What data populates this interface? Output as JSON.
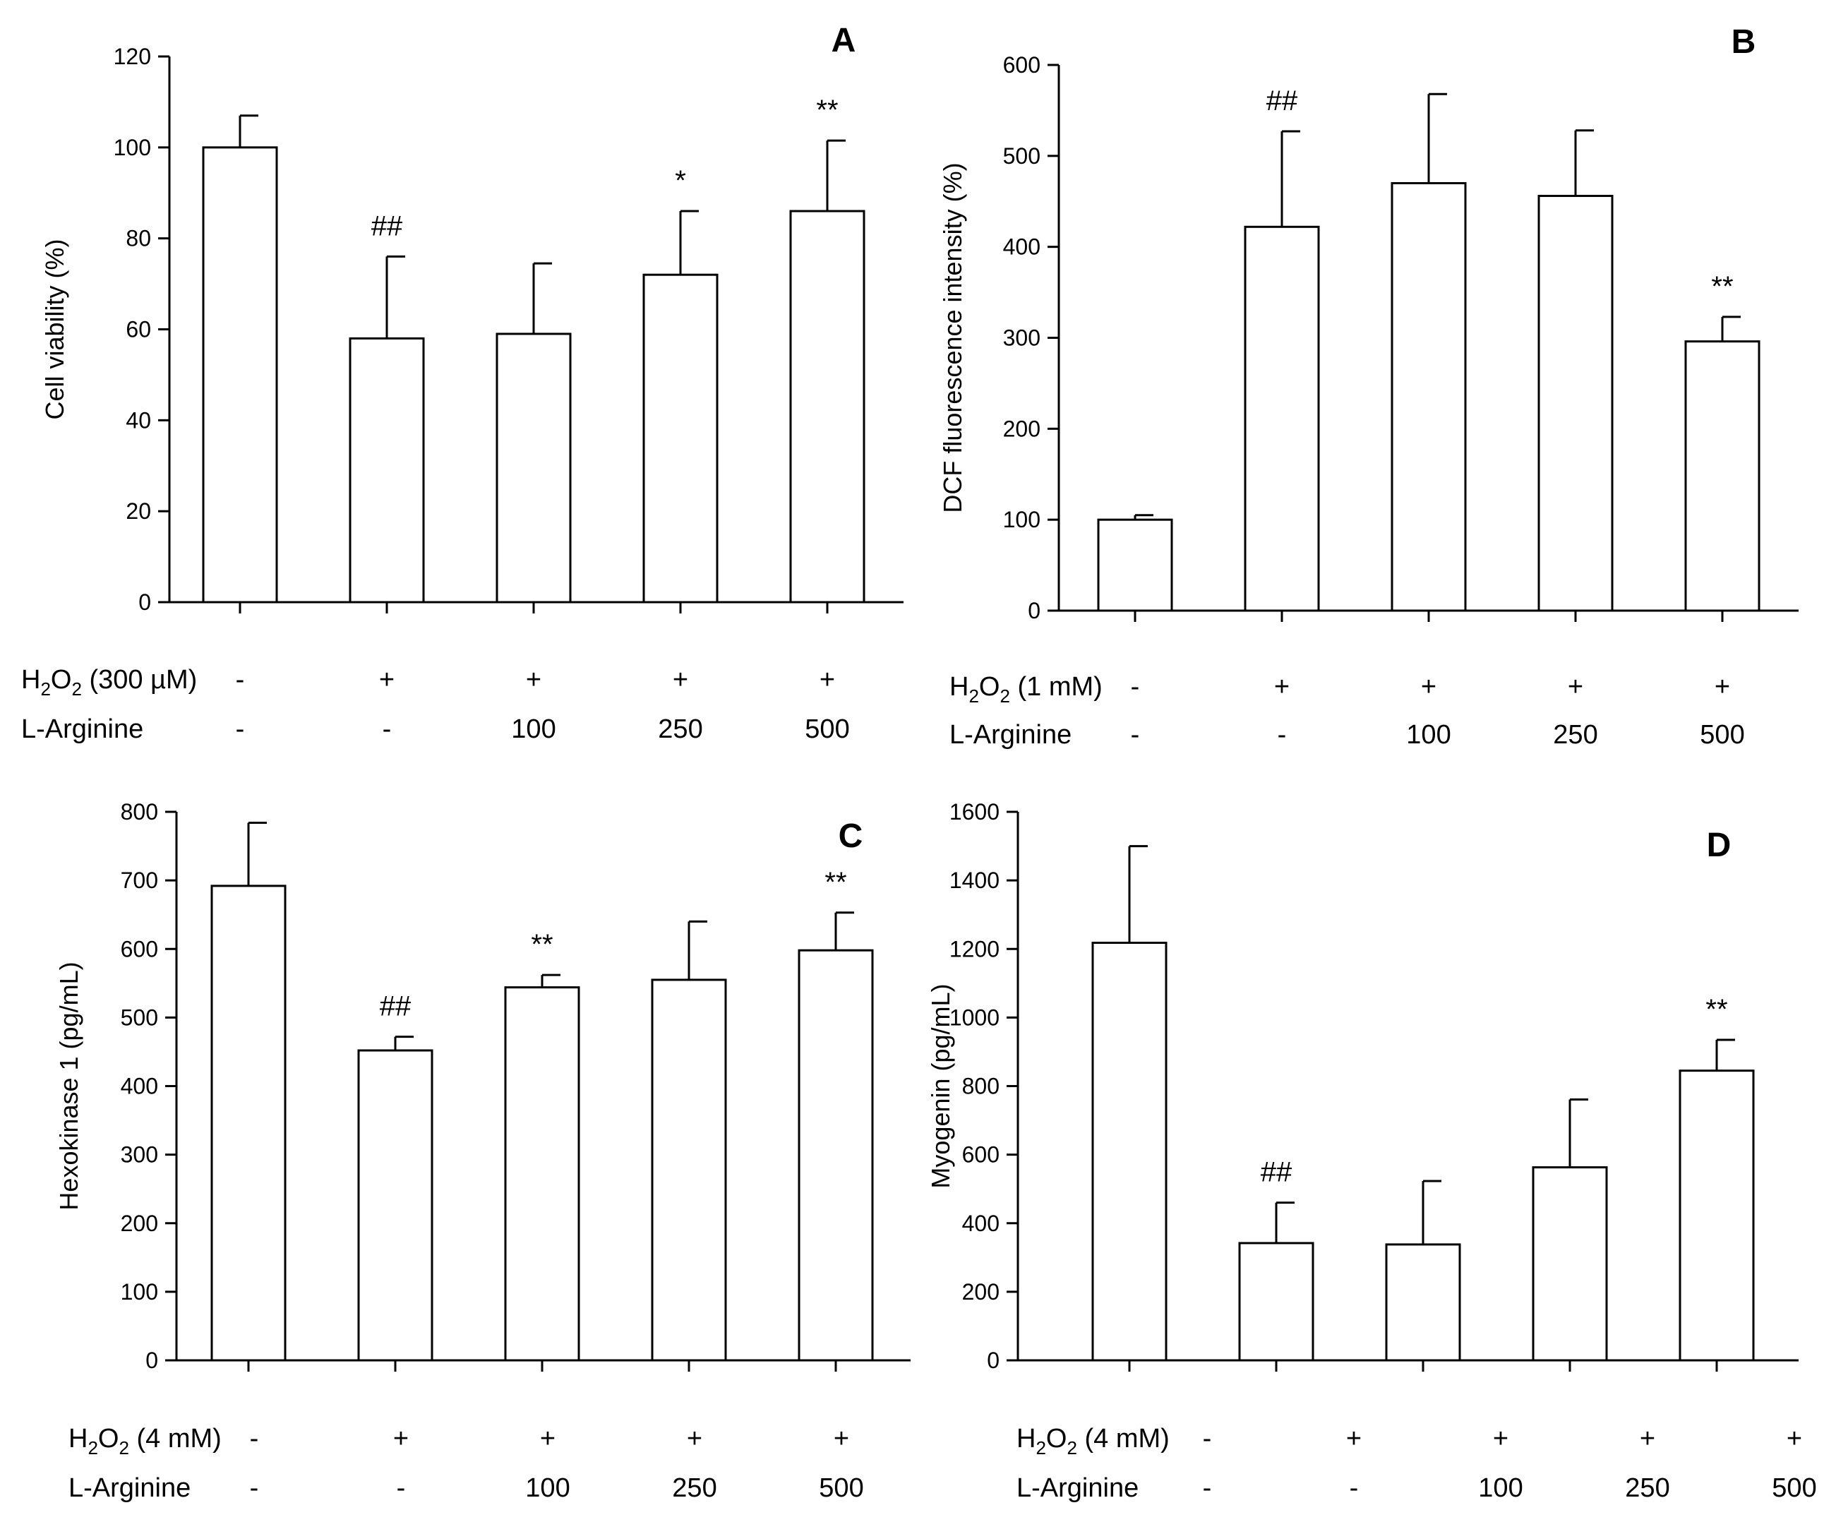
{
  "chart_data": [
    {
      "type": "bar",
      "panel": "A",
      "ylabel": "Cell viability (%)",
      "ylim": [
        0,
        120
      ],
      "yticks": [
        0,
        20,
        40,
        60,
        80,
        100,
        120
      ],
      "values": [
        100,
        58,
        59,
        72,
        86
      ],
      "errors": [
        7,
        18,
        15.5,
        14,
        15.5
      ],
      "annotations": [
        "",
        "##",
        "",
        "*",
        "**"
      ],
      "conditions": [
        {
          "label": "H2O2 (300 µM)",
          "base": "H",
          "sub": "2",
          "mid": "O",
          "sub2": "2",
          "rest": " (300 µM)",
          "values": [
            "-",
            "+",
            "+",
            "+",
            "+"
          ]
        },
        {
          "label": "L-Arginine",
          "values": [
            "-",
            "-",
            "100",
            "250",
            "500"
          ]
        }
      ]
    },
    {
      "type": "bar",
      "panel": "B",
      "ylabel": "DCF fluorescence intensity (%)",
      "ylim": [
        0,
        600
      ],
      "yticks": [
        0,
        100,
        200,
        300,
        400,
        500,
        600
      ],
      "values": [
        100,
        422,
        470,
        456,
        296
      ],
      "errors": [
        5,
        105,
        98,
        72,
        27
      ],
      "annotations": [
        "",
        "##",
        "",
        "",
        "**"
      ],
      "conditions": [
        {
          "label": "H2O2 (1 mM)",
          "base": "H",
          "sub": "2",
          "mid": "O",
          "sub2": "2",
          "rest": " (1 mM)",
          "values": [
            "-",
            "+",
            "+",
            "+",
            "+"
          ]
        },
        {
          "label": "L-Arginine",
          "values": [
            "-",
            "-",
            "100",
            "250",
            "500"
          ]
        }
      ]
    },
    {
      "type": "bar",
      "panel": "C",
      "ylabel": "Hexokinase 1 (pg/mL)",
      "ylim": [
        0,
        800
      ],
      "yticks": [
        0,
        100,
        200,
        300,
        400,
        500,
        600,
        700,
        800
      ],
      "values": [
        692,
        452,
        544,
        555,
        598
      ],
      "errors": [
        92,
        20,
        18,
        85,
        55
      ],
      "annotations": [
        "",
        "##",
        "**",
        "",
        "**"
      ],
      "conditions": [
        {
          "label": "H2O2 (4 mM)",
          "base": "H",
          "sub": "2",
          "mid": "O",
          "sub2": "2",
          "rest": " (4 mM)",
          "values": [
            "-",
            "+",
            "+",
            "+",
            "+"
          ]
        },
        {
          "label": "L-Arginine",
          "values": [
            "-",
            "-",
            "100",
            "250",
            "500"
          ]
        }
      ]
    },
    {
      "type": "bar",
      "panel": "D",
      "ylabel": "Myogenin (pg/mL)",
      "ylim": [
        0,
        1600
      ],
      "yticks": [
        0,
        200,
        400,
        600,
        800,
        1000,
        1200,
        1400,
        1600
      ],
      "values": [
        1218,
        342,
        338,
        563,
        845
      ],
      "errors": [
        282,
        118,
        185,
        198,
        90
      ],
      "annotations": [
        "",
        "##",
        "",
        "",
        "**"
      ],
      "conditions": [
        {
          "label": "H2O2 (4 mM)",
          "base": "H",
          "sub": "2",
          "mid": "O",
          "sub2": "2",
          "rest": " (4 mM)",
          "values": [
            "-",
            "+",
            "+",
            "+",
            "+"
          ]
        },
        {
          "label": "L-Arginine",
          "values": [
            "-",
            "-",
            "100",
            "250",
            "500"
          ]
        }
      ]
    }
  ]
}
